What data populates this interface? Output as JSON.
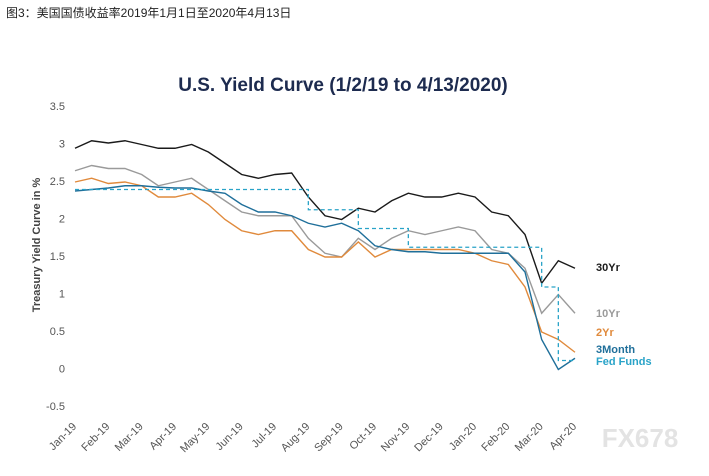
{
  "header": "图3：美国国债收益率2019年1月1日至2020年4月13日",
  "watermark": "FX678",
  "chart_data": {
    "type": "line",
    "title": "U.S. Yield Curve (1/2/19 to 4/13/2020)",
    "y_label": "Treasury Yield Curve in %",
    "categories": [
      "Jan-19",
      null,
      "Feb-19",
      null,
      "Mar-19",
      null,
      "Apr-19",
      null,
      "May-19",
      null,
      "Jun-19",
      null,
      "Jul-19",
      null,
      "Aug-19",
      null,
      "Sep-19",
      null,
      "Oct-19",
      null,
      "Nov-19",
      null,
      "Dec-19",
      null,
      "Jan-20",
      null,
      "Feb-20",
      null,
      "Mar-20",
      null,
      "Apr-20"
    ],
    "ylim": [
      -0.5,
      3.5
    ],
    "yticks": [
      3.5,
      3,
      2.5,
      2,
      1.5,
      1,
      0.5,
      0,
      -0.5
    ],
    "grid": false,
    "series": [
      {
        "name": "30Yr",
        "color": "#1a1a1a",
        "values": [
          2.95,
          3.05,
          3.02,
          3.05,
          3.0,
          2.95,
          2.95,
          3.0,
          2.9,
          2.75,
          2.6,
          2.55,
          2.6,
          2.62,
          2.3,
          2.05,
          2.0,
          2.15,
          2.1,
          2.25,
          2.35,
          2.3,
          2.3,
          2.35,
          2.3,
          2.1,
          2.05,
          1.8,
          1.15,
          1.45,
          1.35
        ]
      },
      {
        "name": "10Yr",
        "color": "#9a9a9a",
        "values": [
          2.65,
          2.72,
          2.68,
          2.68,
          2.6,
          2.45,
          2.5,
          2.55,
          2.4,
          2.25,
          2.1,
          2.05,
          2.05,
          2.05,
          1.75,
          1.55,
          1.5,
          1.75,
          1.6,
          1.75,
          1.85,
          1.8,
          1.85,
          1.9,
          1.85,
          1.6,
          1.55,
          1.35,
          0.75,
          1.0,
          0.75
        ]
      },
      {
        "name": "2Yr",
        "color": "#e08a3c",
        "values": [
          2.5,
          2.55,
          2.48,
          2.5,
          2.45,
          2.3,
          2.3,
          2.35,
          2.2,
          2.0,
          1.85,
          1.8,
          1.85,
          1.85,
          1.6,
          1.5,
          1.5,
          1.7,
          1.5,
          1.6,
          1.6,
          1.6,
          1.6,
          1.6,
          1.55,
          1.45,
          1.4,
          1.1,
          0.5,
          0.4,
          0.23
        ]
      },
      {
        "name": "3Month",
        "color": "#1f6f9a",
        "values": [
          2.38,
          2.4,
          2.42,
          2.45,
          2.45,
          2.43,
          2.42,
          2.42,
          2.38,
          2.35,
          2.2,
          2.1,
          2.1,
          2.05,
          1.95,
          1.9,
          1.95,
          1.85,
          1.65,
          1.6,
          1.57,
          1.57,
          1.55,
          1.55,
          1.55,
          1.55,
          1.55,
          1.3,
          0.4,
          0.0,
          0.15
        ]
      },
      {
        "name": "Fed Funds",
        "color": "#29a3c8",
        "dashed": true,
        "step": true,
        "values": [
          2.4,
          2.4,
          2.4,
          2.4,
          2.4,
          2.4,
          2.4,
          2.4,
          2.4,
          2.4,
          2.4,
          2.4,
          2.4,
          2.4,
          2.13,
          2.13,
          2.13,
          1.88,
          1.88,
          1.88,
          1.63,
          1.63,
          1.63,
          1.63,
          1.63,
          1.63,
          1.63,
          1.63,
          1.1,
          0.12,
          0.12
        ]
      }
    ]
  }
}
